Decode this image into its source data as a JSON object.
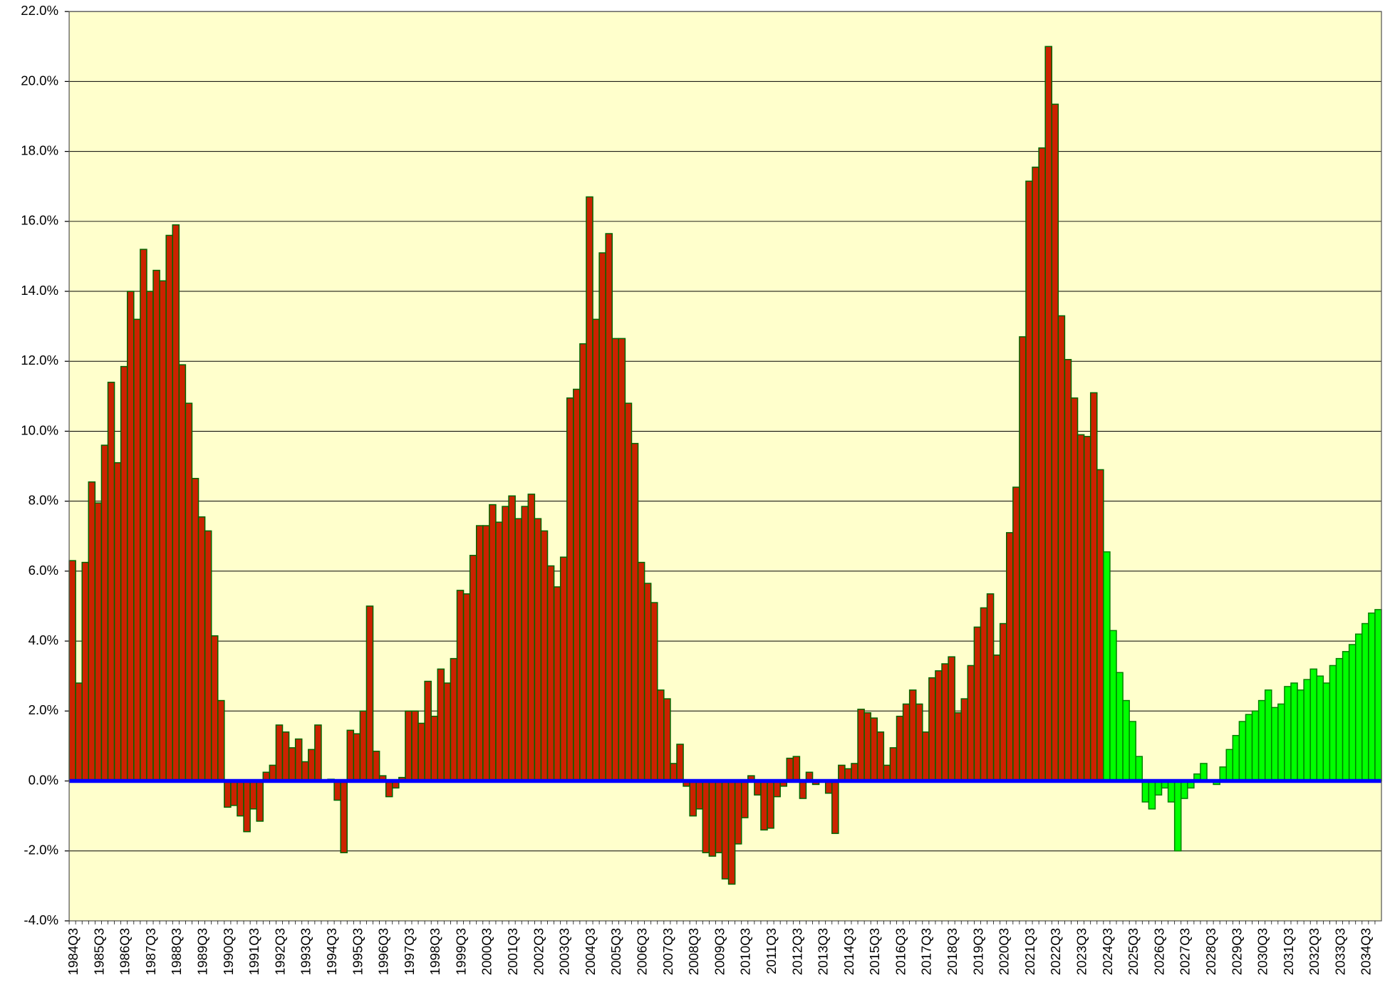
{
  "chart_data": {
    "type": "bar",
    "categories": [
      "1984Q3",
      null,
      null,
      null,
      "1985Q3",
      null,
      null,
      null,
      "1986Q3",
      null,
      null,
      null,
      "1987Q3",
      null,
      null,
      null,
      "1988Q3",
      null,
      null,
      null,
      "1989Q3",
      null,
      null,
      null,
      "1990Q3",
      null,
      null,
      null,
      "1991Q3",
      null,
      null,
      null,
      "1992Q3",
      null,
      null,
      null,
      "1993Q3",
      null,
      null,
      null,
      "1994Q3",
      null,
      null,
      null,
      "1995Q3",
      null,
      null,
      null,
      "1996Q3",
      null,
      null,
      null,
      "1997Q3",
      null,
      null,
      null,
      "1998Q3",
      null,
      null,
      null,
      "1999Q3",
      null,
      null,
      null,
      "2000Q3",
      null,
      null,
      null,
      "2001Q3",
      null,
      null,
      null,
      "2002Q3",
      null,
      null,
      null,
      "2003Q3",
      null,
      null,
      null,
      "2004Q3",
      null,
      null,
      null,
      "2005Q3",
      null,
      null,
      null,
      "2006Q3",
      null,
      null,
      null,
      "2007Q3",
      null,
      null,
      null,
      "2008Q3",
      null,
      null,
      null,
      "2009Q3",
      null,
      null,
      null,
      "2010Q3",
      null,
      null,
      null,
      "2011Q3",
      null,
      null,
      null,
      "2012Q3",
      null,
      null,
      null,
      "2013Q3",
      null,
      null,
      null,
      "2014Q3",
      null,
      null,
      null,
      "2015Q3",
      null,
      null,
      null,
      "2016Q3",
      null,
      null,
      null,
      "2017Q3",
      null,
      null,
      null,
      "2018Q3",
      null,
      null,
      null,
      "2019Q3",
      null,
      null,
      null,
      "2020Q3",
      null,
      null,
      null,
      "2021Q3",
      null,
      null,
      null,
      "2022Q3",
      null,
      null,
      null,
      "2023Q3",
      null,
      null,
      null,
      "2024Q3",
      null,
      null,
      null,
      "2025Q3",
      null,
      null,
      null,
      "2026Q3",
      null,
      null,
      null,
      "2027Q3",
      null,
      null,
      null,
      "2028Q3",
      null,
      null,
      null,
      "2029Q3",
      null,
      null,
      null,
      "2030Q3",
      null,
      null,
      null,
      "2031Q3",
      null,
      null,
      null,
      "2032Q3",
      null,
      null,
      null,
      "2033Q3",
      null,
      null,
      null,
      "2034Q3",
      null,
      null
    ],
    "series": [
      {
        "color": "#cc2200",
        "edge": "#006600",
        "values": [
          6.3,
          2.8,
          6.25,
          8.55,
          7.95,
          9.6,
          11.4,
          9.1,
          11.85,
          14.0,
          13.2,
          15.2,
          14.0,
          14.6,
          14.3,
          15.6,
          15.9,
          11.9,
          10.8,
          8.65,
          7.55,
          7.15,
          4.15,
          2.3,
          -0.75,
          -0.7,
          -1.0,
          -1.45,
          -0.8,
          -1.15,
          0.25,
          0.45,
          1.6,
          1.4,
          0.95,
          1.2,
          0.55,
          0.9,
          1.6,
          0.0,
          0.05,
          -0.55,
          -2.05,
          1.45,
          1.35,
          2.0,
          5.0,
          0.85,
          0.15,
          -0.45,
          -0.2,
          0.1,
          2.0,
          2.0,
          1.65,
          2.85,
          1.85,
          3.2,
          2.8,
          3.5,
          5.45,
          5.35,
          6.45,
          7.3,
          7.3,
          7.9,
          7.4,
          7.85,
          8.15,
          7.5,
          7.85,
          8.2,
          7.5,
          7.15,
          6.15,
          5.55,
          6.4,
          10.95,
          11.2,
          12.5,
          16.7,
          13.2,
          15.1,
          15.65,
          12.65,
          12.65,
          10.8,
          9.65,
          6.25,
          5.65,
          5.1,
          2.6,
          2.35,
          0.5,
          1.05,
          -0.15,
          -1.0,
          -0.8,
          -2.05,
          -2.15,
          -2.05,
          -2.8,
          -2.95,
          -1.8,
          -1.05,
          0.15,
          -0.4,
          -1.4,
          -1.35,
          -0.45,
          -0.15,
          0.65,
          0.7,
          -0.5,
          0.25,
          -0.1,
          0.0,
          -0.35,
          -1.5,
          0.45,
          0.35,
          0.5,
          2.05,
          1.95,
          1.8,
          1.4,
          0.45,
          0.95,
          1.85,
          2.2,
          2.6,
          2.2,
          1.4,
          2.95,
          3.15,
          3.35,
          3.55,
          1.95,
          2.35,
          3.3,
          4.4,
          4.95,
          5.35,
          3.6,
          4.5,
          7.1,
          8.4,
          12.7,
          17.15,
          17.55,
          18.1,
          21.0,
          19.35,
          13.3,
          12.05,
          10.95,
          9.9,
          9.85,
          11.1,
          8.9,
          null,
          null,
          null,
          null,
          null,
          null,
          null,
          null,
          null,
          null,
          null,
          null,
          null,
          null,
          null,
          null,
          null,
          null,
          null,
          null,
          null,
          null,
          null,
          null,
          null,
          null,
          null,
          null,
          null,
          null,
          null,
          null,
          null,
          null,
          null,
          null,
          null,
          null,
          null,
          null,
          null,
          null,
          null
        ]
      },
      {
        "color": "#00ff00",
        "edge": "#008000",
        "values": [
          null,
          null,
          null,
          null,
          null,
          null,
          null,
          null,
          null,
          null,
          null,
          null,
          null,
          null,
          null,
          null,
          null,
          null,
          null,
          null,
          null,
          null,
          null,
          null,
          null,
          null,
          null,
          null,
          null,
          null,
          null,
          null,
          null,
          null,
          null,
          null,
          null,
          null,
          null,
          null,
          null,
          null,
          null,
          null,
          null,
          null,
          null,
          null,
          null,
          null,
          null,
          null,
          null,
          null,
          null,
          null,
          null,
          null,
          null,
          null,
          null,
          null,
          null,
          null,
          null,
          null,
          null,
          null,
          null,
          null,
          null,
          null,
          null,
          null,
          null,
          null,
          null,
          null,
          null,
          null,
          null,
          null,
          null,
          null,
          null,
          null,
          null,
          null,
          null,
          null,
          null,
          null,
          null,
          null,
          null,
          null,
          null,
          null,
          null,
          null,
          null,
          null,
          null,
          null,
          null,
          null,
          null,
          null,
          null,
          null,
          null,
          null,
          null,
          null,
          null,
          null,
          null,
          null,
          null,
          null,
          null,
          null,
          null,
          null,
          null,
          null,
          null,
          null,
          null,
          null,
          null,
          null,
          null,
          null,
          null,
          null,
          null,
          null,
          null,
          null,
          null,
          null,
          null,
          null,
          null,
          null,
          null,
          null,
          null,
          null,
          null,
          null,
          null,
          null,
          null,
          null,
          null,
          null,
          null,
          null,
          6.55,
          4.3,
          3.1,
          2.3,
          1.7,
          0.7,
          -0.6,
          -0.8,
          -0.4,
          -0.2,
          -0.6,
          -2.0,
          -0.5,
          -0.2,
          0.2,
          0.5,
          0.0,
          -0.1,
          0.4,
          0.9,
          1.3,
          1.7,
          1.9,
          2.0,
          2.3,
          2.6,
          2.1,
          2.2,
          2.7,
          2.8,
          2.6,
          2.9,
          3.2,
          3.0,
          2.8,
          3.3,
          3.5,
          3.7,
          3.9,
          4.2,
          4.5,
          4.8,
          4.9
        ]
      }
    ],
    "ylim": [
      -4,
      22
    ],
    "yticks": [
      {
        "value": -4,
        "label": "-4.0%"
      },
      {
        "value": -2,
        "label": "-2.0%"
      },
      {
        "value": 0,
        "label": "0.0%"
      },
      {
        "value": 2,
        "label": "2.0%"
      },
      {
        "value": 4,
        "label": "4.0%"
      },
      {
        "value": 6,
        "label": "6.0%"
      },
      {
        "value": 8,
        "label": "8.0%"
      },
      {
        "value": 10,
        "label": "10.0%"
      },
      {
        "value": 12,
        "label": "12.0%"
      },
      {
        "value": 14,
        "label": "14.0%"
      },
      {
        "value": 16,
        "label": "16.0%"
      },
      {
        "value": 18,
        "label": "18.0%"
      },
      {
        "value": 20,
        "label": "20.0%"
      },
      {
        "value": 22,
        "label": "22.0%"
      }
    ],
    "grid": true,
    "background": "#ffffcc",
    "zero_line_color": "#0000ff"
  }
}
